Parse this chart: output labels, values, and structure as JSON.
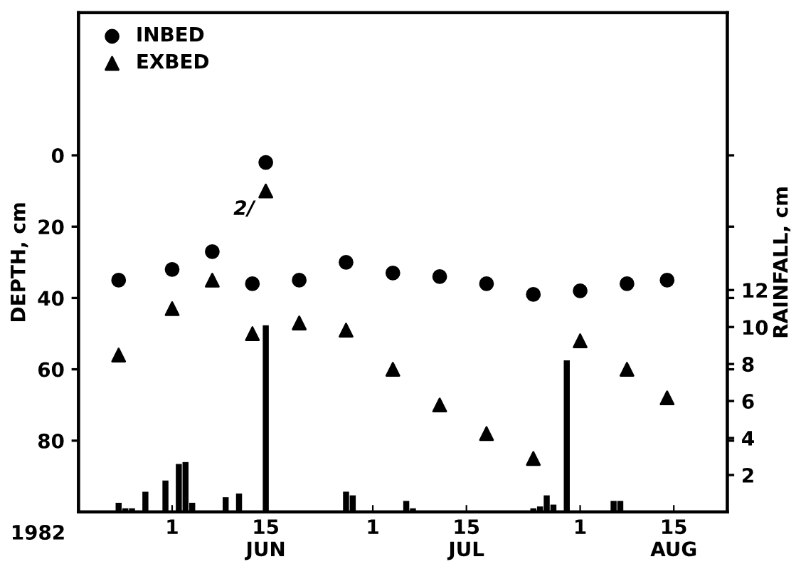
{
  "chart_data": {
    "type": "scatter",
    "ylabel": "DEPTH, cm",
    "y2label": "RAINFALL, cm",
    "xlim": [
      "1982-05-18",
      "1982-08-23"
    ],
    "xticks": [
      {
        "value": "1982-06-01",
        "label": "1"
      },
      {
        "value": "1982-06-15",
        "label": "15\nJUN"
      },
      {
        "value": "1982-07-01",
        "label": "1"
      },
      {
        "value": "1982-07-15",
        "label": "15\nJUL"
      },
      {
        "value": "1982-08-01",
        "label": "1"
      },
      {
        "value": "1982-08-15",
        "label": "15\nAUG"
      }
    ],
    "ylim": [
      100,
      -40
    ],
    "yticks": [
      0,
      20,
      40,
      60,
      80
    ],
    "y2lim": [
      0,
      27
    ],
    "y2ticks": [
      2,
      4,
      6,
      8,
      10,
      12
    ],
    "legend": "top left",
    "grid": false,
    "series": [
      {
        "name": "INBED",
        "marker": "circle",
        "color": "#000000",
        "axis": "y",
        "x": [
          "1982-05-24",
          "1982-06-01",
          "1982-06-07",
          "1982-06-13",
          "1982-06-15",
          "1982-06-20",
          "1982-06-27",
          "1982-07-04",
          "1982-07-11",
          "1982-07-18",
          "1982-07-25",
          "1982-08-01",
          "1982-08-08",
          "1982-08-14"
        ],
        "values": [
          35,
          32,
          27,
          36,
          2,
          35,
          30,
          33,
          34,
          36,
          39,
          38,
          36,
          35
        ]
      },
      {
        "name": "EXBED",
        "marker": "triangle",
        "color": "#000000",
        "axis": "y",
        "x": [
          "1982-05-24",
          "1982-06-01",
          "1982-06-07",
          "1982-06-13",
          "1982-06-15",
          "1982-06-20",
          "1982-06-27",
          "1982-07-04",
          "1982-07-11",
          "1982-07-18",
          "1982-07-25",
          "1982-08-01",
          "1982-08-08",
          "1982-08-14"
        ],
        "values": [
          56,
          43,
          35,
          50,
          10,
          47,
          49,
          60,
          70,
          78,
          85,
          52,
          60,
          68
        ]
      },
      {
        "type": "bar",
        "color": "#000000",
        "axis": "y2",
        "x": [
          "1982-05-24",
          "1982-05-25",
          "1982-05-26",
          "1982-05-28",
          "1982-05-31",
          "1982-06-02",
          "1982-06-03",
          "1982-06-04",
          "1982-06-09",
          "1982-06-11",
          "1982-06-15",
          "1982-06-27",
          "1982-06-28",
          "1982-07-06",
          "1982-07-07",
          "1982-07-25",
          "1982-07-26",
          "1982-07-27",
          "1982-07-28",
          "1982-07-30",
          "1982-08-06",
          "1982-08-07"
        ],
        "values": [
          0.5,
          0.2,
          0.2,
          1.1,
          1.7,
          2.6,
          2.7,
          0.5,
          0.8,
          1.0,
          10.1,
          1.1,
          0.9,
          0.6,
          0.2,
          0.2,
          0.3,
          0.9,
          0.4,
          8.2,
          0.6,
          0.6
        ]
      }
    ],
    "annotations": [
      "2/",
      "1982"
    ]
  }
}
